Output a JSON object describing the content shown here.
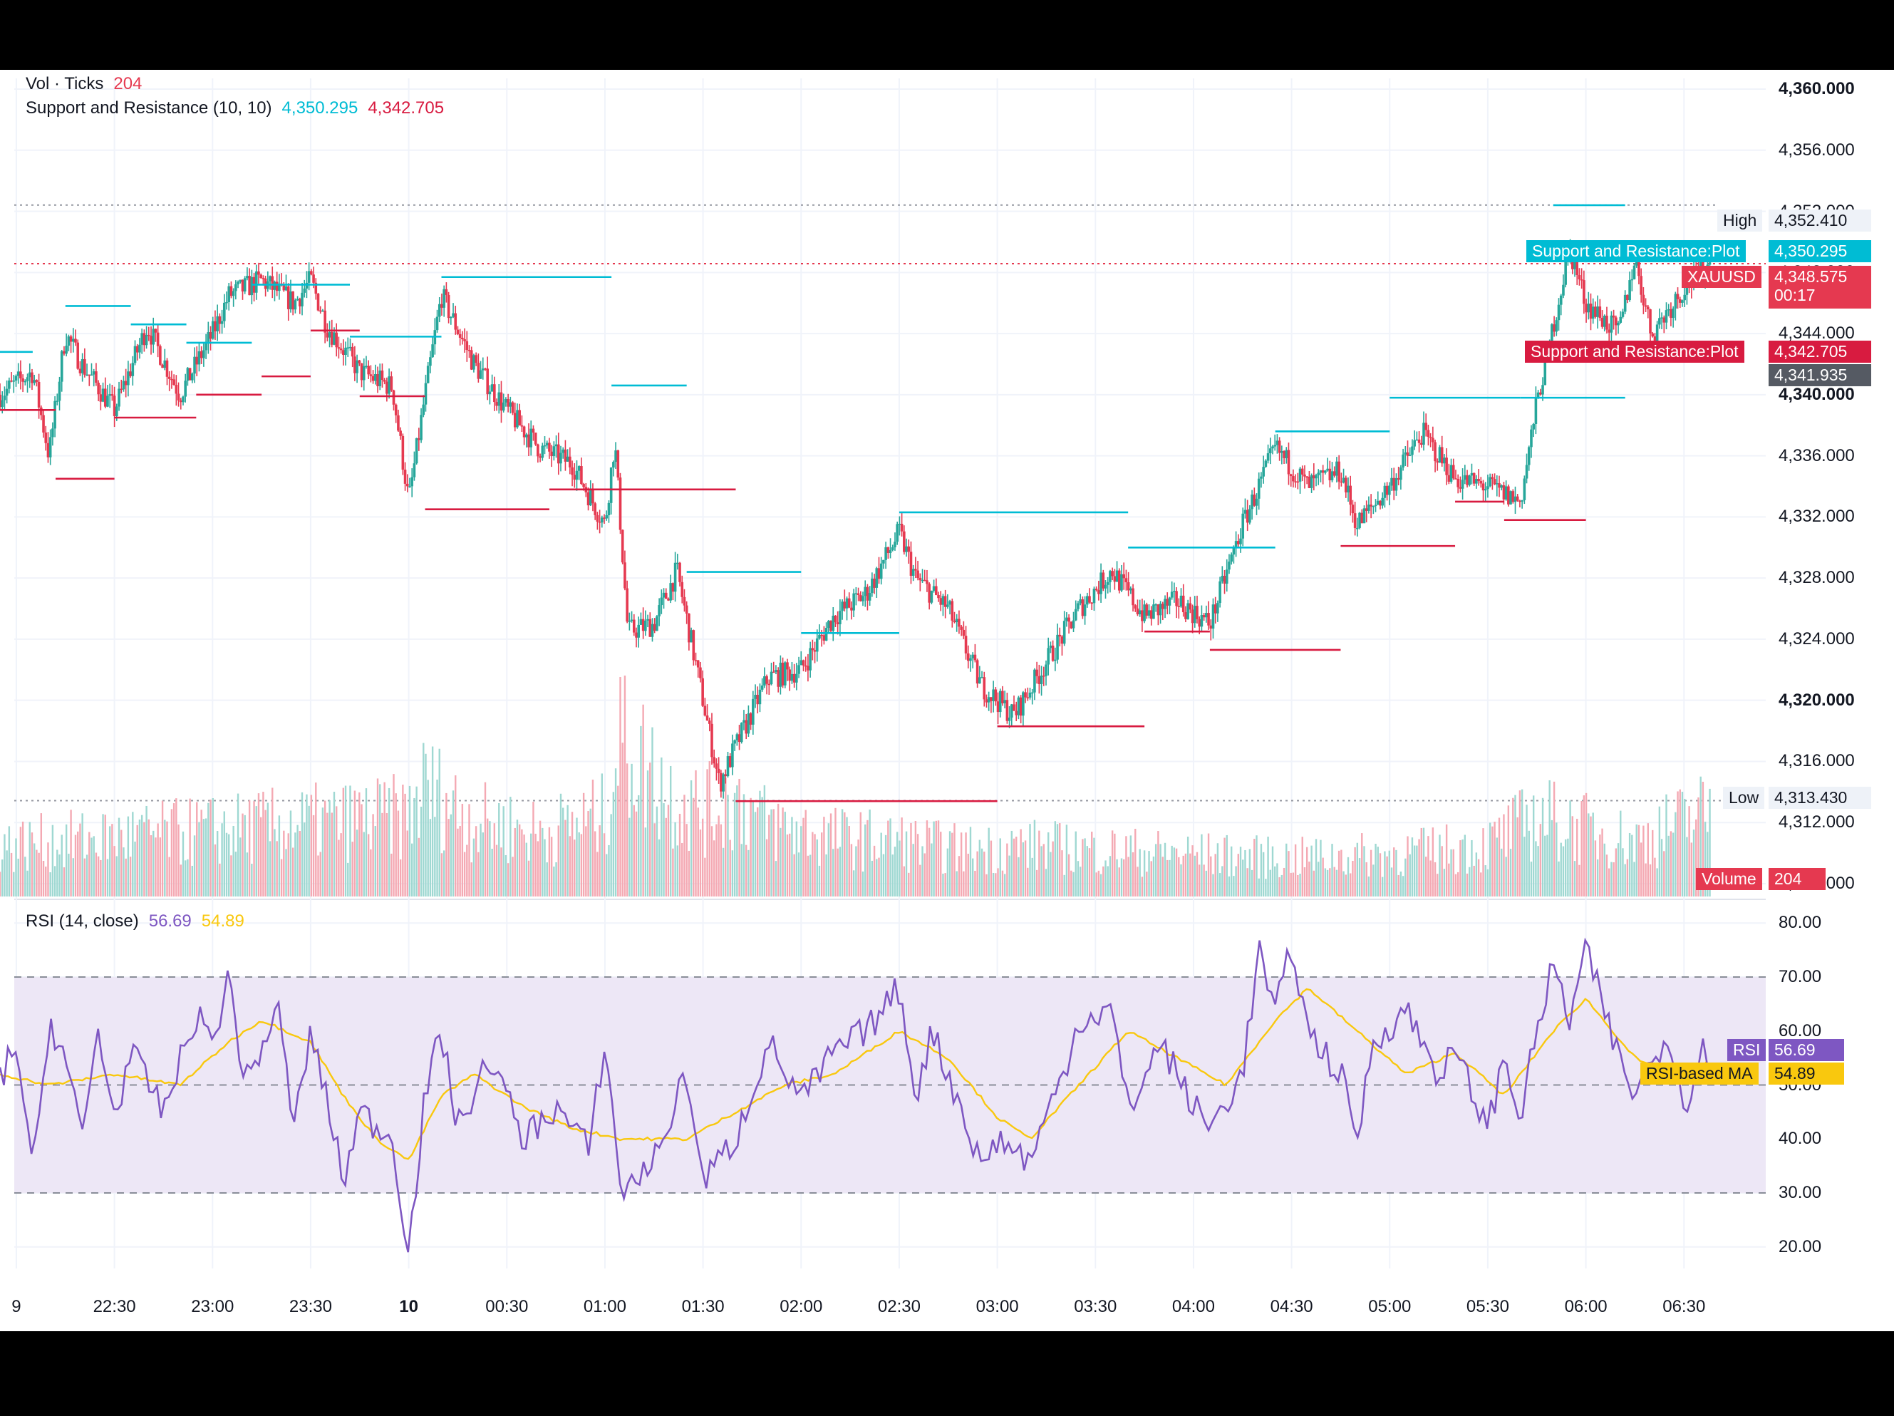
{
  "legend": {
    "vol_label": "Vol · Ticks",
    "vol_value": "204",
    "sr_label": "Support and Resistance (10, 10)",
    "sr_resistance": "4,350.295",
    "sr_support": "4,342.705",
    "rsi_label": "RSI (14, close)",
    "rsi_value": "56.69",
    "rsi_ma_value": "54.89"
  },
  "price_axis": {
    "ticks": [
      "4,360.000",
      "4,356.000",
      "4,352.000",
      "4,348.000",
      "4,344.000",
      "4,340.000",
      "4,336.000",
      "4,332.000",
      "4,328.000",
      "4,324.000",
      "4,320.000",
      "4,316.000",
      "4,312.000",
      "4,308.000"
    ],
    "bold_ticks": [
      "4,360.000",
      "4,340.000",
      "4,320.000"
    ]
  },
  "rsi_axis": {
    "ticks": [
      "80.00",
      "70.00",
      "60.00",
      "50.00",
      "40.00",
      "30.00",
      "20.00"
    ]
  },
  "time_axis": {
    "ticks": [
      "9",
      "22:30",
      "23:00",
      "23:30",
      "10",
      "00:30",
      "01:00",
      "01:30",
      "02:00",
      "02:30",
      "03:00",
      "03:30",
      "04:00",
      "04:30",
      "05:00",
      "05:30",
      "06:00",
      "06:30"
    ],
    "bold_ticks": [
      "10"
    ]
  },
  "tags": {
    "high_label": "High",
    "high_value": "4,352.410",
    "low_label": "Low",
    "low_value": "4,313.430",
    "sr_top_label": "Support and Resistance:Plot",
    "sr_top_value": "4,350.295",
    "symbol_label": "XAUUSD",
    "symbol_value": "4,348.575",
    "countdown": "00:17",
    "sr_bot_label": "Support and Resistance:Plot",
    "sr_bot_value": "4,342.705",
    "cross_value": "4,341.935",
    "volume_label": "Volume",
    "volume_value": "204",
    "rsi_label": "RSI",
    "rsi_value": "56.69",
    "rsima_label": "RSI-based MA",
    "rsima_value": "54.89"
  },
  "colors": {
    "up": "#26a69a",
    "down": "#e53950",
    "resistance": "#00bcd4",
    "support": "#d81b40",
    "rsi": "#7e57c2",
    "rsi_ma": "#f9c80e",
    "rsi_band": "#ede7f6"
  },
  "chart_data": [
    {
      "type": "candlestick",
      "title": "",
      "ylim": [
        4308,
        4362
      ],
      "xlim": [
        "21:55",
        "06:55"
      ],
      "y_scale": "linear",
      "grid": true,
      "high": 4352.41,
      "low": 4313.43,
      "last": 4348.575,
      "close_path": [
        [
          "21:55",
          4340.0
        ],
        [
          "22:05",
          4341.5
        ],
        [
          "22:10",
          4336.0
        ],
        [
          "22:15",
          4344.0
        ],
        [
          "22:20",
          4342.0
        ],
        [
          "22:30",
          4339.0
        ],
        [
          "22:40",
          4344.5
        ],
        [
          "22:50",
          4340.0
        ],
        [
          "23:00",
          4344.0
        ],
        [
          "23:05",
          4346.5
        ],
        [
          "23:15",
          4347.5
        ],
        [
          "23:25",
          4346.0
        ],
        [
          "23:30",
          4347.5
        ],
        [
          "23:35",
          4344.5
        ],
        [
          "23:45",
          4341.5
        ],
        [
          "23:55",
          4340.5
        ],
        [
          "00:00",
          4333.0
        ],
        [
          "00:05",
          4340.0
        ],
        [
          "00:10",
          4346.5
        ],
        [
          "00:20",
          4342.0
        ],
        [
          "00:30",
          4339.0
        ],
        [
          "00:40",
          4336.5
        ],
        [
          "00:50",
          4335.5
        ],
        [
          "01:00",
          4331.5
        ],
        [
          "01:03",
          4337.0
        ],
        [
          "01:07",
          4324.5
        ],
        [
          "01:15",
          4325.0
        ],
        [
          "01:22",
          4328.5
        ],
        [
          "01:30",
          4320.0
        ],
        [
          "01:35",
          4314.5
        ],
        [
          "01:40",
          4317.0
        ],
        [
          "01:50",
          4321.5
        ],
        [
          "02:00",
          4322.0
        ],
        [
          "02:10",
          4325.5
        ],
        [
          "02:20",
          4327.0
        ],
        [
          "02:30",
          4331.0
        ],
        [
          "02:35",
          4328.0
        ],
        [
          "02:45",
          4326.0
        ],
        [
          "02:55",
          4321.0
        ],
        [
          "03:05",
          4319.0
        ],
        [
          "03:15",
          4322.5
        ],
        [
          "03:25",
          4326.0
        ],
        [
          "03:35",
          4328.5
        ],
        [
          "03:45",
          4325.5
        ],
        [
          "03:55",
          4326.5
        ],
        [
          "04:05",
          4325.0
        ],
        [
          "04:15",
          4331.5
        ],
        [
          "04:25",
          4336.5
        ],
        [
          "04:35",
          4334.0
        ],
        [
          "04:45",
          4335.0
        ],
        [
          "04:50",
          4331.5
        ],
        [
          "05:00",
          4334.0
        ],
        [
          "05:10",
          4337.5
        ],
        [
          "05:20",
          4334.5
        ],
        [
          "05:30",
          4334.0
        ],
        [
          "05:40",
          4333.0
        ],
        [
          "05:45",
          4339.5
        ],
        [
          "05:55",
          4349.5
        ],
        [
          "06:00",
          4346.0
        ],
        [
          "06:10",
          4344.0
        ],
        [
          "06:15",
          4349.0
        ],
        [
          "06:20",
          4344.0
        ],
        [
          "06:30",
          4347.0
        ],
        [
          "06:38",
          4348.575
        ]
      ],
      "resistance_segments": [
        {
          "from": "21:55",
          "to": "22:05",
          "level": 4342.8
        },
        {
          "from": "22:15",
          "to": "22:35",
          "level": 4345.8
        },
        {
          "from": "22:35",
          "to": "22:52",
          "level": 4344.6
        },
        {
          "from": "22:52",
          "to": "23:12",
          "level": 4343.4
        },
        {
          "from": "23:12",
          "to": "23:42",
          "level": 4347.2
        },
        {
          "from": "23:42",
          "to": "00:10",
          "level": 4343.8
        },
        {
          "from": "00:10",
          "to": "01:02",
          "level": 4347.7
        },
        {
          "from": "01:02",
          "to": "01:25",
          "level": 4340.6
        },
        {
          "from": "01:25",
          "to": "02:00",
          "level": 4328.4
        },
        {
          "from": "02:00",
          "to": "02:30",
          "level": 4324.4
        },
        {
          "from": "02:30",
          "to": "03:40",
          "level": 4332.3
        },
        {
          "from": "03:40",
          "to": "04:25",
          "level": 4330.0
        },
        {
          "from": "04:25",
          "to": "05:00",
          "level": 4337.6
        },
        {
          "from": "05:00",
          "to": "05:40",
          "level": 4339.8
        },
        {
          "from": "05:40",
          "to": "06:12",
          "level": 4339.8
        },
        {
          "from": "05:50",
          "to": "06:12",
          "level": 4352.4
        }
      ],
      "support_segments": [
        {
          "from": "21:55",
          "to": "22:12",
          "level": 4339.0
        },
        {
          "from": "22:12",
          "to": "22:30",
          "level": 4334.5
        },
        {
          "from": "22:30",
          "to": "22:55",
          "level": 4338.5
        },
        {
          "from": "22:55",
          "to": "23:15",
          "level": 4340.0
        },
        {
          "from": "23:15",
          "to": "23:30",
          "level": 4341.2
        },
        {
          "from": "23:30",
          "to": "23:45",
          "level": 4344.2
        },
        {
          "from": "23:45",
          "to": "00:05",
          "level": 4339.9
        },
        {
          "from": "00:05",
          "to": "00:43",
          "level": 4332.5
        },
        {
          "from": "00:43",
          "to": "01:40",
          "level": 4333.8
        },
        {
          "from": "01:40",
          "to": "03:00",
          "level": 4313.4
        },
        {
          "from": "03:00",
          "to": "03:45",
          "level": 4318.3
        },
        {
          "from": "03:45",
          "to": "04:05",
          "level": 4324.5
        },
        {
          "from": "04:05",
          "to": "04:45",
          "level": 4323.3
        },
        {
          "from": "04:45",
          "to": "05:20",
          "level": 4330.1
        },
        {
          "from": "05:20",
          "to": "05:35",
          "level": 4333.0
        },
        {
          "from": "05:35",
          "to": "06:00",
          "level": 4331.8
        },
        {
          "from": "06:00",
          "to": "06:20",
          "level": 4342.2
        }
      ]
    },
    {
      "type": "bar",
      "title": "",
      "series_name": "Volume",
      "last_value": 204,
      "profile": [
        [
          "21:55",
          120
        ],
        [
          "00:00",
          190
        ],
        [
          "00:05",
          260
        ],
        [
          "00:20",
          180
        ],
        [
          "00:40",
          150
        ],
        [
          "01:00",
          190
        ],
        [
          "01:05",
          390
        ],
        [
          "01:10",
          330
        ],
        [
          "01:20",
          240
        ],
        [
          "01:30",
          200
        ],
        [
          "01:40",
          230
        ],
        [
          "01:50",
          170
        ],
        [
          "02:10",
          140
        ],
        [
          "02:30",
          130
        ],
        [
          "02:50",
          110
        ],
        [
          "03:10",
          120
        ],
        [
          "03:30",
          110
        ],
        [
          "04:00",
          100
        ],
        [
          "04:30",
          90
        ],
        [
          "05:00",
          100
        ],
        [
          "05:30",
          120
        ],
        [
          "05:45",
          190
        ],
        [
          "06:00",
          160
        ],
        [
          "06:15",
          130
        ],
        [
          "06:38",
          204
        ]
      ]
    },
    {
      "type": "line",
      "title": "",
      "ylim": [
        16,
        84
      ],
      "band": [
        30,
        70
      ],
      "midline": 50,
      "rsi_path": [
        [
          "21:55",
          51
        ],
        [
          "22:00",
          58
        ],
        [
          "22:05",
          33
        ],
        [
          "22:10",
          62
        ],
        [
          "22:15",
          55
        ],
        [
          "22:20",
          40
        ],
        [
          "22:25",
          60
        ],
        [
          "22:30",
          44
        ],
        [
          "22:35",
          56
        ],
        [
          "22:45",
          45
        ],
        [
          "22:55",
          63
        ],
        [
          "23:00",
          58
        ],
        [
          "23:05",
          70
        ],
        [
          "23:10",
          50
        ],
        [
          "23:20",
          64
        ],
        [
          "23:25",
          42
        ],
        [
          "23:30",
          60
        ],
        [
          "23:35",
          47
        ],
        [
          "23:40",
          32
        ],
        [
          "23:45",
          45
        ],
        [
          "23:55",
          40
        ],
        [
          "00:00",
          19
        ],
        [
          "00:05",
          48
        ],
        [
          "00:10",
          60
        ],
        [
          "00:15",
          42
        ],
        [
          "00:25",
          55
        ],
        [
          "00:35",
          40
        ],
        [
          "00:45",
          46
        ],
        [
          "00:55",
          38
        ],
        [
          "01:00",
          58
        ],
        [
          "01:05",
          30
        ],
        [
          "01:15",
          36
        ],
        [
          "01:25",
          52
        ],
        [
          "01:30",
          32
        ],
        [
          "01:40",
          40
        ],
        [
          "01:50",
          58
        ],
        [
          "02:00",
          47
        ],
        [
          "02:10",
          56
        ],
        [
          "02:20",
          60
        ],
        [
          "02:30",
          68
        ],
        [
          "02:35",
          48
        ],
        [
          "02:40",
          60
        ],
        [
          "02:50",
          44
        ],
        [
          "02:55",
          35
        ],
        [
          "03:00",
          40
        ],
        [
          "03:10",
          36
        ],
        [
          "03:20",
          52
        ],
        [
          "03:25",
          62
        ],
        [
          "03:35",
          64
        ],
        [
          "03:40",
          45
        ],
        [
          "03:50",
          58
        ],
        [
          "04:00",
          46
        ],
        [
          "04:05",
          42
        ],
        [
          "04:15",
          52
        ],
        [
          "04:20",
          75
        ],
        [
          "04:25",
          63
        ],
        [
          "04:30",
          76
        ],
        [
          "04:35",
          60
        ],
        [
          "04:45",
          52
        ],
        [
          "04:50",
          40
        ],
        [
          "04:55",
          58
        ],
        [
          "05:05",
          64
        ],
        [
          "05:15",
          52
        ],
        [
          "05:20",
          56
        ],
        [
          "05:30",
          42
        ],
        [
          "05:35",
          55
        ],
        [
          "05:40",
          44
        ],
        [
          "05:45",
          60
        ],
        [
          "05:50",
          72
        ],
        [
          "05:55",
          62
        ],
        [
          "06:00",
          75
        ],
        [
          "06:10",
          55
        ],
        [
          "06:15",
          48
        ],
        [
          "06:25",
          60
        ],
        [
          "06:30",
          46
        ],
        [
          "06:35",
          56
        ],
        [
          "06:38",
          56.69
        ]
      ],
      "rsi_ma_path": [
        [
          "21:55",
          52
        ],
        [
          "22:10",
          50
        ],
        [
          "22:30",
          52
        ],
        [
          "22:50",
          50
        ],
        [
          "23:05",
          58
        ],
        [
          "23:15",
          62
        ],
        [
          "23:30",
          58
        ],
        [
          "23:40",
          48
        ],
        [
          "23:50",
          40
        ],
        [
          "00:00",
          36
        ],
        [
          "00:10",
          48
        ],
        [
          "00:20",
          52
        ],
        [
          "00:35",
          46
        ],
        [
          "00:50",
          42
        ],
        [
          "01:05",
          40
        ],
        [
          "01:25",
          40
        ],
        [
          "01:40",
          45
        ],
        [
          "01:55",
          50
        ],
        [
          "02:10",
          52
        ],
        [
          "02:30",
          60
        ],
        [
          "02:45",
          55
        ],
        [
          "03:00",
          44
        ],
        [
          "03:10",
          40
        ],
        [
          "03:25",
          50
        ],
        [
          "03:40",
          60
        ],
        [
          "03:55",
          55
        ],
        [
          "04:10",
          50
        ],
        [
          "04:25",
          62
        ],
        [
          "04:35",
          68
        ],
        [
          "04:50",
          60
        ],
        [
          "05:05",
          52
        ],
        [
          "05:20",
          56
        ],
        [
          "05:35",
          48
        ],
        [
          "05:50",
          60
        ],
        [
          "06:00",
          66
        ],
        [
          "06:15",
          55
        ],
        [
          "06:30",
          50
        ],
        [
          "06:38",
          54.89
        ]
      ]
    }
  ]
}
